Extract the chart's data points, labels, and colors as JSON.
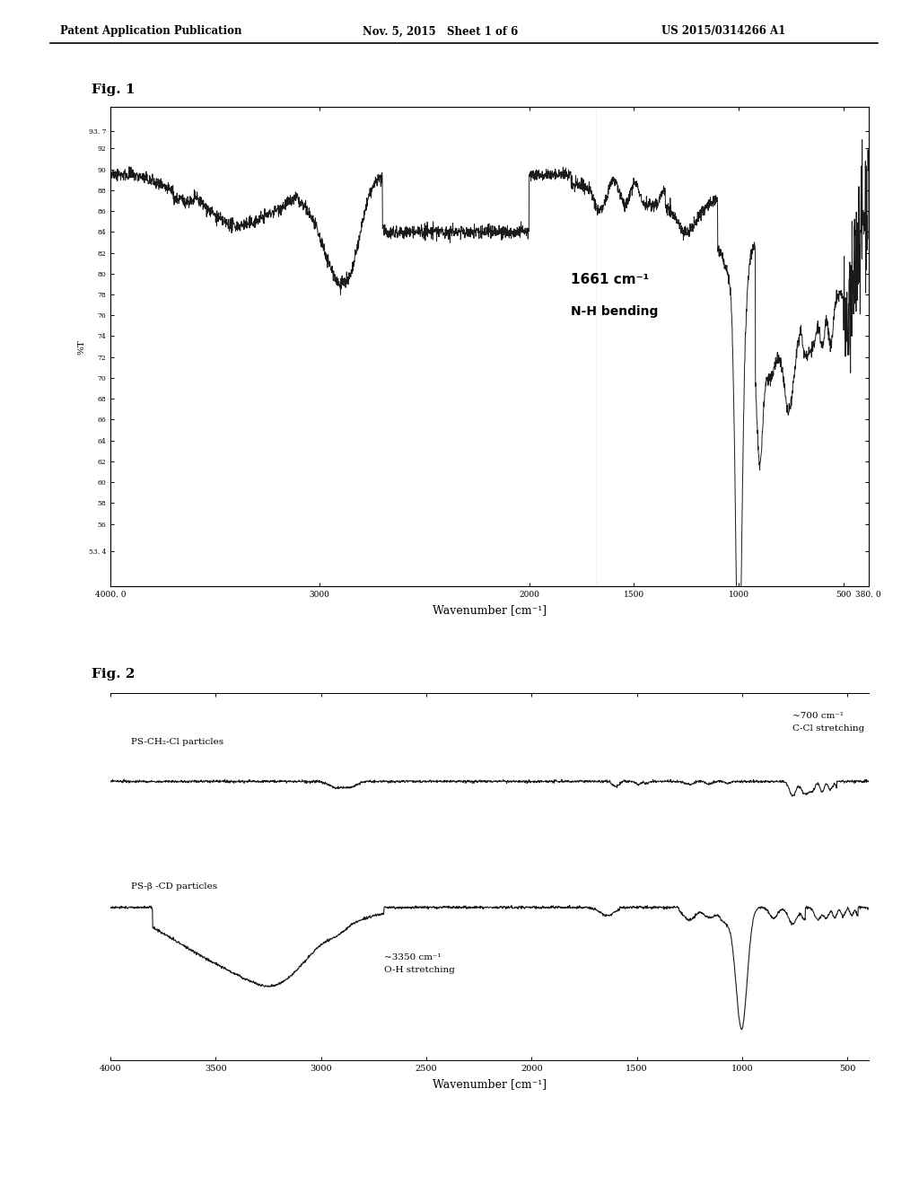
{
  "header_left": "Patent Application Publication",
  "header_mid": "Nov. 5, 2015   Sheet 1 of 6",
  "header_right": "US 2015/0314266 A1",
  "fig1_label": "Fig. 1",
  "fig2_label": "Fig. 2",
  "fig1_annotation_wavenumber": "1661 cm⁻¹",
  "fig1_annotation_mode": "N-H bending",
  "fig2_annotation1_wavenumber": "~700 cm⁻¹",
  "fig2_annotation1_mode": "C-Cl stretching",
  "fig2_annotation2_wavenumber": "~3350 cm⁻¹",
  "fig2_annotation2_mode": "O-H stretching",
  "fig2_label1": "PS-CH₂-Cl particles",
  "fig2_label2": "PS-β -CD particles",
  "fig1_xlabel": "Wavenumber [cm⁻¹]",
  "fig2_xlabel": "Wavenumber [cm⁻¹]",
  "fig1_ylabel": "%T",
  "background_color": "#ffffff",
  "line_color": "#1a1a1a"
}
